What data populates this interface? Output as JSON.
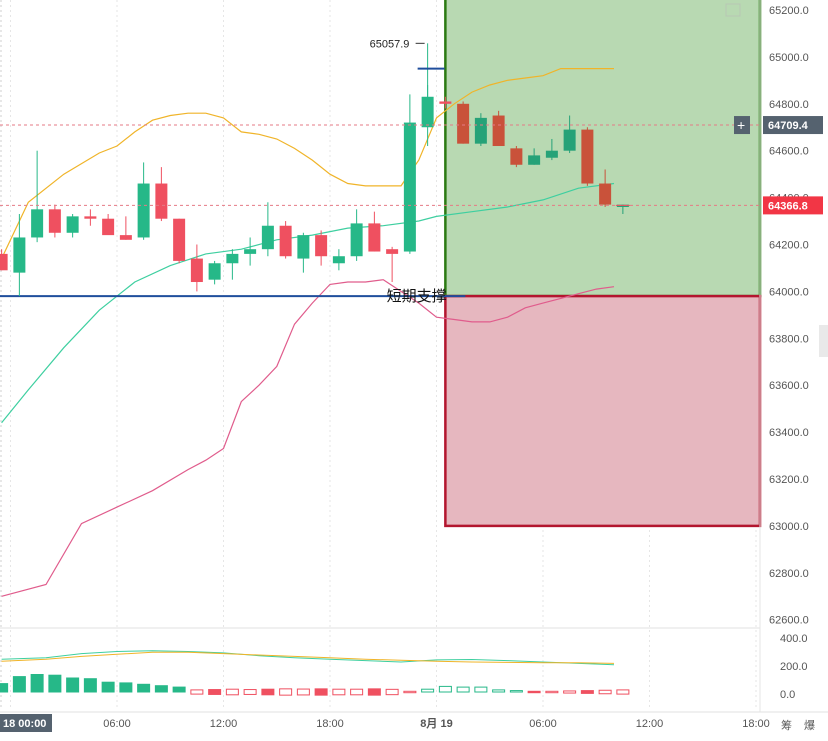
{
  "chart_data": {
    "type": "candlestick",
    "y_axis": {
      "min": 62500,
      "max": 65250,
      "ticks": [
        65200.0,
        65000.0,
        64800.0,
        64600.0,
        64400.0,
        64200.0,
        64000.0,
        63800.0,
        63600.0,
        63400.0,
        63200.0,
        63000.0,
        62800.0,
        62600.0
      ]
    },
    "x_axis": {
      "labels": [
        "18 00:00",
        "06:00",
        "12:00",
        "18:00",
        "8月 19",
        "06:00",
        "12:00",
        "18:00"
      ],
      "positions_hours": [
        0,
        6,
        12,
        18,
        24,
        30,
        36,
        42
      ]
    },
    "candles": [
      {
        "t": -0.5,
        "o": 64160,
        "h": 64180,
        "l": 64090,
        "c": 64090
      },
      {
        "t": 0.5,
        "o": 64080,
        "h": 64330,
        "l": 63980,
        "c": 64230
      },
      {
        "t": 1.5,
        "o": 64230,
        "h": 64600,
        "l": 64210,
        "c": 64350
      },
      {
        "t": 2.5,
        "o": 64350,
        "h": 64370,
        "l": 64230,
        "c": 64250
      },
      {
        "t": 3.5,
        "o": 64250,
        "h": 64330,
        "l": 64230,
        "c": 64320
      },
      {
        "t": 4.5,
        "o": 64320,
        "h": 64350,
        "l": 64280,
        "c": 64310
      },
      {
        "t": 5.5,
        "o": 64310,
        "h": 64330,
        "l": 64250,
        "c": 64240
      },
      {
        "t": 6.5,
        "o": 64240,
        "h": 64320,
        "l": 64220,
        "c": 64220
      },
      {
        "t": 7.5,
        "o": 64230,
        "h": 64550,
        "l": 64220,
        "c": 64460
      },
      {
        "t": 8.5,
        "o": 64460,
        "h": 64530,
        "l": 64300,
        "c": 64310
      },
      {
        "t": 9.5,
        "o": 64310,
        "h": 64310,
        "l": 64120,
        "c": 64130
      },
      {
        "t": 10.5,
        "o": 64140,
        "h": 64200,
        "l": 64000,
        "c": 64040
      },
      {
        "t": 11.5,
        "o": 64050,
        "h": 64130,
        "l": 64030,
        "c": 64120
      },
      {
        "t": 12.5,
        "o": 64120,
        "h": 64180,
        "l": 64050,
        "c": 64160
      },
      {
        "t": 13.5,
        "o": 64160,
        "h": 64230,
        "l": 64110,
        "c": 64180
      },
      {
        "t": 14.5,
        "o": 64180,
        "h": 64380,
        "l": 64150,
        "c": 64280
      },
      {
        "t": 15.5,
        "o": 64280,
        "h": 64300,
        "l": 64140,
        "c": 64150
      },
      {
        "t": 16.5,
        "o": 64140,
        "h": 64250,
        "l": 64080,
        "c": 64240
      },
      {
        "t": 17.5,
        "o": 64240,
        "h": 64260,
        "l": 64110,
        "c": 64150
      },
      {
        "t": 18.5,
        "o": 64120,
        "h": 64180,
        "l": 64090,
        "c": 64150
      },
      {
        "t": 19.5,
        "o": 64150,
        "h": 64350,
        "l": 64130,
        "c": 64290
      },
      {
        "t": 20.5,
        "o": 64290,
        "h": 64340,
        "l": 64170,
        "c": 64170
      },
      {
        "t": 21.5,
        "o": 64180,
        "h": 64190,
        "l": 64040,
        "c": 64160
      },
      {
        "t": 22.5,
        "o": 64170,
        "h": 64840,
        "l": 64160,
        "c": 64720
      },
      {
        "t": 23.5,
        "o": 64700,
        "h": 64880,
        "l": 64620,
        "c": 64830
      },
      {
        "t": 24.5,
        "o": 64810,
        "h": 64830,
        "l": 64780,
        "c": 64800
      },
      {
        "t": 25.5,
        "o": 64800,
        "h": 64810,
        "l": 64630,
        "c": 64630
      },
      {
        "t": 26.5,
        "o": 64630,
        "h": 64760,
        "l": 64620,
        "c": 64740
      },
      {
        "t": 27.5,
        "o": 64750,
        "h": 64770,
        "l": 64620,
        "c": 64620
      },
      {
        "t": 28.5,
        "o": 64610,
        "h": 64620,
        "l": 64530,
        "c": 64540
      },
      {
        "t": 29.5,
        "o": 64540,
        "h": 64610,
        "l": 64540,
        "c": 64580
      },
      {
        "t": 30.5,
        "o": 64570,
        "h": 64650,
        "l": 64560,
        "c": 64600
      },
      {
        "t": 31.5,
        "o": 64600,
        "h": 64750,
        "l": 64590,
        "c": 64690
      },
      {
        "t": 32.5,
        "o": 64690,
        "h": 64700,
        "l": 64450,
        "c": 64460
      },
      {
        "t": 33.5,
        "o": 64460,
        "h": 64520,
        "l": 64360,
        "c": 64370
      },
      {
        "t": 34.5,
        "o": 64360,
        "h": 64370,
        "l": 64330,
        "c": 64370
      }
    ],
    "bollinger": {
      "upper": [
        [
          -0.5,
          64140
        ],
        [
          1,
          64380
        ],
        [
          3,
          64500
        ],
        [
          5,
          64590
        ],
        [
          6,
          64620
        ],
        [
          7,
          64680
        ],
        [
          8,
          64730
        ],
        [
          9,
          64750
        ],
        [
          10,
          64760
        ],
        [
          11,
          64760
        ],
        [
          12,
          64740
        ],
        [
          13,
          64680
        ],
        [
          14,
          64670
        ],
        [
          15,
          64650
        ],
        [
          16,
          64610
        ],
        [
          17,
          64560
        ],
        [
          18,
          64500
        ],
        [
          19,
          64460
        ],
        [
          20,
          64450
        ],
        [
          21,
          64450
        ],
        [
          22,
          64450
        ],
        [
          23,
          64560
        ],
        [
          24,
          64740
        ],
        [
          25,
          64800
        ],
        [
          26,
          64850
        ],
        [
          27,
          64880
        ],
        [
          28,
          64900
        ],
        [
          29,
          64910
        ],
        [
          30,
          64920
        ],
        [
          31,
          64950
        ],
        [
          32,
          64950
        ],
        [
          33,
          64950
        ],
        [
          34,
          64950
        ]
      ],
      "middle": [
        [
          -0.5,
          63440
        ],
        [
          1,
          63580
        ],
        [
          3,
          63760
        ],
        [
          5,
          63920
        ],
        [
          7,
          64040
        ],
        [
          9,
          64110
        ],
        [
          11,
          64160
        ],
        [
          13,
          64180
        ],
        [
          15,
          64220
        ],
        [
          17,
          64240
        ],
        [
          19,
          64270
        ],
        [
          21,
          64280
        ],
        [
          23,
          64300
        ],
        [
          24,
          64320
        ],
        [
          26,
          64340
        ],
        [
          28,
          64360
        ],
        [
          30,
          64390
        ],
        [
          32,
          64440
        ],
        [
          34,
          64460
        ]
      ],
      "lower": [
        [
          -0.5,
          62700
        ],
        [
          2,
          62750
        ],
        [
          4,
          63010
        ],
        [
          6,
          63080
        ],
        [
          8,
          63150
        ],
        [
          10,
          63240
        ],
        [
          11,
          63280
        ],
        [
          12,
          63330
        ],
        [
          13,
          63530
        ],
        [
          14,
          63600
        ],
        [
          15,
          63680
        ],
        [
          16,
          63860
        ],
        [
          17,
          63950
        ],
        [
          18,
          64030
        ],
        [
          19,
          64040
        ],
        [
          20,
          64040
        ],
        [
          21,
          64050
        ],
        [
          22,
          64000
        ],
        [
          23,
          63950
        ],
        [
          24,
          63890
        ],
        [
          25,
          63880
        ],
        [
          26,
          63870
        ],
        [
          27,
          63870
        ],
        [
          28,
          63890
        ],
        [
          29,
          63930
        ],
        [
          30,
          63950
        ],
        [
          31,
          63970
        ],
        [
          32,
          63990
        ],
        [
          33,
          64010
        ],
        [
          34,
          64020
        ]
      ]
    },
    "max_marker": {
      "t": 23.5,
      "value": 65057.9,
      "label": "65057.9"
    },
    "current_price": {
      "value": 64366.8,
      "label": "64366.8",
      "color": "#f23645"
    },
    "crosshair_price": {
      "value": 64709.4,
      "label": "64709.4"
    },
    "support_line": {
      "value": 63980,
      "t_start": -0.5,
      "t_end": 24.5,
      "label": "短期支撑"
    },
    "zones": [
      {
        "kind": "profit",
        "t_start": 24.5,
        "y_top": 65250,
        "y_bottom": 63980,
        "fill": "#b8d9b2",
        "stroke": "#2b7a12"
      },
      {
        "kind": "loss",
        "t_start": 24.5,
        "y_top": 63980,
        "y_bottom": 63000,
        "fill": "#e6b7bf",
        "stroke": "#b3162f"
      }
    ],
    "volume": {
      "ticks": [
        "400.0",
        "200.0",
        "0.0"
      ],
      "bars": [
        60,
        110,
        125,
        120,
        100,
        95,
        70,
        65,
        55,
        45,
        35,
        -30,
        -35,
        -40,
        -35,
        -40,
        -45,
        -42,
        -45,
        -40,
        -40,
        -45,
        -38,
        -10,
        20,
        40,
        35,
        35,
        15,
        10,
        -10,
        -10,
        -15,
        -20,
        -25,
        -30
      ],
      "fast": [
        [
          -0.5,
          40
        ],
        [
          2,
          60
        ],
        [
          4,
          120
        ],
        [
          6,
          150
        ],
        [
          8,
          160
        ],
        [
          10,
          150
        ],
        [
          12,
          130
        ],
        [
          14,
          90
        ],
        [
          16,
          60
        ],
        [
          18,
          40
        ],
        [
          20,
          20
        ],
        [
          22,
          0
        ],
        [
          24,
          30
        ],
        [
          26,
          35
        ],
        [
          28,
          20
        ],
        [
          30,
          0
        ],
        [
          32,
          -20
        ],
        [
          34,
          -40
        ]
      ],
      "slow": [
        [
          -0.5,
          10
        ],
        [
          2,
          40
        ],
        [
          4,
          80
        ],
        [
          6,
          110
        ],
        [
          8,
          140
        ],
        [
          10,
          140
        ],
        [
          12,
          120
        ],
        [
          14,
          100
        ],
        [
          16,
          80
        ],
        [
          18,
          60
        ],
        [
          20,
          40
        ],
        [
          22,
          25
        ],
        [
          24,
          10
        ],
        [
          26,
          0
        ],
        [
          28,
          -5
        ],
        [
          30,
          -10
        ],
        [
          32,
          -10
        ],
        [
          34,
          -20
        ]
      ]
    },
    "colors": {
      "up": "#26b888",
      "down": "#ef5060",
      "up_dark": "#26a278",
      "down_dark": "#c9523a",
      "upper_band": "#f0b429",
      "middle_band": "#3ecfa0",
      "lower_band": "#e05c8c"
    }
  },
  "bottom_right_icons": [
    "筹",
    "爆"
  ]
}
